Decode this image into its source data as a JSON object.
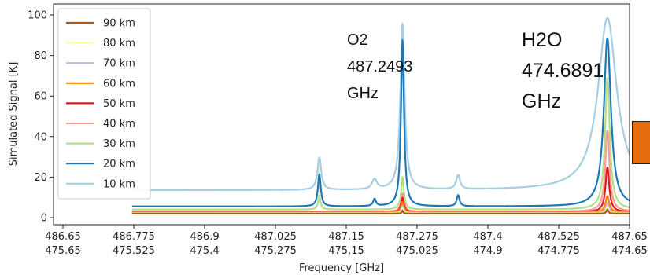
{
  "chart_data": {
    "type": "line",
    "xlabel": "Frequency [GHz]",
    "ylabel": "Simulated Signal [K]",
    "xlim": [
      486.65,
      487.65
    ],
    "ylim": [
      -3,
      102
    ],
    "x_ticks": [
      486.65,
      486.775,
      486.9,
      487.025,
      487.15,
      487.275,
      487.4,
      487.525,
      487.65
    ],
    "x_tick_labels_top": [
      "486.65",
      "486.775",
      "486.9",
      "487.025",
      "487.15",
      "487.275",
      "487.4",
      "487.525",
      "487.65"
    ],
    "x_tick_labels_bottom": [
      "475.65",
      "475.525",
      "475.4",
      "475.275",
      "475.15",
      "475.025",
      "474.9",
      "474.775",
      "474.65"
    ],
    "y_ticks": [
      0,
      20,
      40,
      60,
      80,
      100
    ],
    "grid": false,
    "legend_position": "top-left",
    "annotations": [
      {
        "lines": [
          "O2",
          "487.2493",
          "GHz"
        ]
      },
      {
        "lines": [
          "H2O",
          "474.6891",
          "GHz"
        ]
      }
    ],
    "series": [
      {
        "name": "90 km",
        "color": "#a6561f",
        "baseline": 2.0,
        "peaks": [
          {
            "x": 487.2493,
            "height": 1.5,
            "width": 0.0015
          },
          {
            "x": 487.6109,
            "height": 2.0,
            "width": 0.002
          }
        ]
      },
      {
        "name": "80 km",
        "color": "#ffff99",
        "baseline": 2.2,
        "peaks": [
          {
            "x": 487.2493,
            "height": 2.5,
            "width": 0.002
          },
          {
            "x": 487.6109,
            "height": 3.0,
            "width": 0.0025
          }
        ]
      },
      {
        "name": "70 km",
        "color": "#cab2d6",
        "baseline": 2.4,
        "peaks": [
          {
            "x": 487.2493,
            "height": 3.5,
            "width": 0.0025
          },
          {
            "x": 487.6109,
            "height": 5.0,
            "width": 0.003
          }
        ]
      },
      {
        "name": "60 km",
        "color": "#ff7f00",
        "baseline": 2.6,
        "peaks": [
          {
            "x": 487.2493,
            "height": 5.0,
            "width": 0.003
          },
          {
            "x": 487.6109,
            "height": 8.0,
            "width": 0.004
          }
        ]
      },
      {
        "name": "50 km",
        "color": "#e31a1c",
        "baseline": 2.8,
        "peaks": [
          {
            "x": 487.2493,
            "height": 7.0,
            "width": 0.003
          },
          {
            "x": 487.6109,
            "height": 22.0,
            "width": 0.004
          }
        ]
      },
      {
        "name": "40 km",
        "color": "#fb9a99",
        "baseline": 3.0,
        "peaks": [
          {
            "x": 487.2493,
            "height": 9.0,
            "width": 0.003
          },
          {
            "x": 487.6109,
            "height": 40.0,
            "width": 0.0045
          }
        ]
      },
      {
        "name": "30 km",
        "color": "#b2df8a",
        "baseline": 4.0,
        "peaks": [
          {
            "x": 487.1025,
            "height": 7.0,
            "width": 0.0025
          },
          {
            "x": 487.2493,
            "height": 16.0,
            "width": 0.003
          },
          {
            "x": 487.6109,
            "height": 65.0,
            "width": 0.005
          }
        ]
      },
      {
        "name": "20 km",
        "color": "#1f78b4",
        "baseline": 5.5,
        "peaks": [
          {
            "x": 487.1025,
            "height": 16.0,
            "width": 0.003
          },
          {
            "x": 487.2,
            "height": 3.5,
            "width": 0.003
          },
          {
            "x": 487.2493,
            "height": 82.0,
            "width": 0.0032
          },
          {
            "x": 487.3475,
            "height": 5.5,
            "width": 0.003
          },
          {
            "x": 487.6109,
            "height": 83.0,
            "width": 0.0075
          }
        ]
      },
      {
        "name": "10 km",
        "color": "#a6cee3",
        "baseline": 13.5,
        "peaks": [
          {
            "x": 487.1025,
            "height": 16.0,
            "width": 0.004
          },
          {
            "x": 487.2,
            "height": 5.0,
            "width": 0.005
          },
          {
            "x": 487.2493,
            "height": 82.0,
            "width": 0.0045
          },
          {
            "x": 487.3475,
            "height": 7.0,
            "width": 0.004
          },
          {
            "x": 487.6109,
            "height": 85.0,
            "width": 0.02
          }
        ]
      }
    ]
  },
  "decor": {
    "orange_box_color": "#e66c10"
  }
}
